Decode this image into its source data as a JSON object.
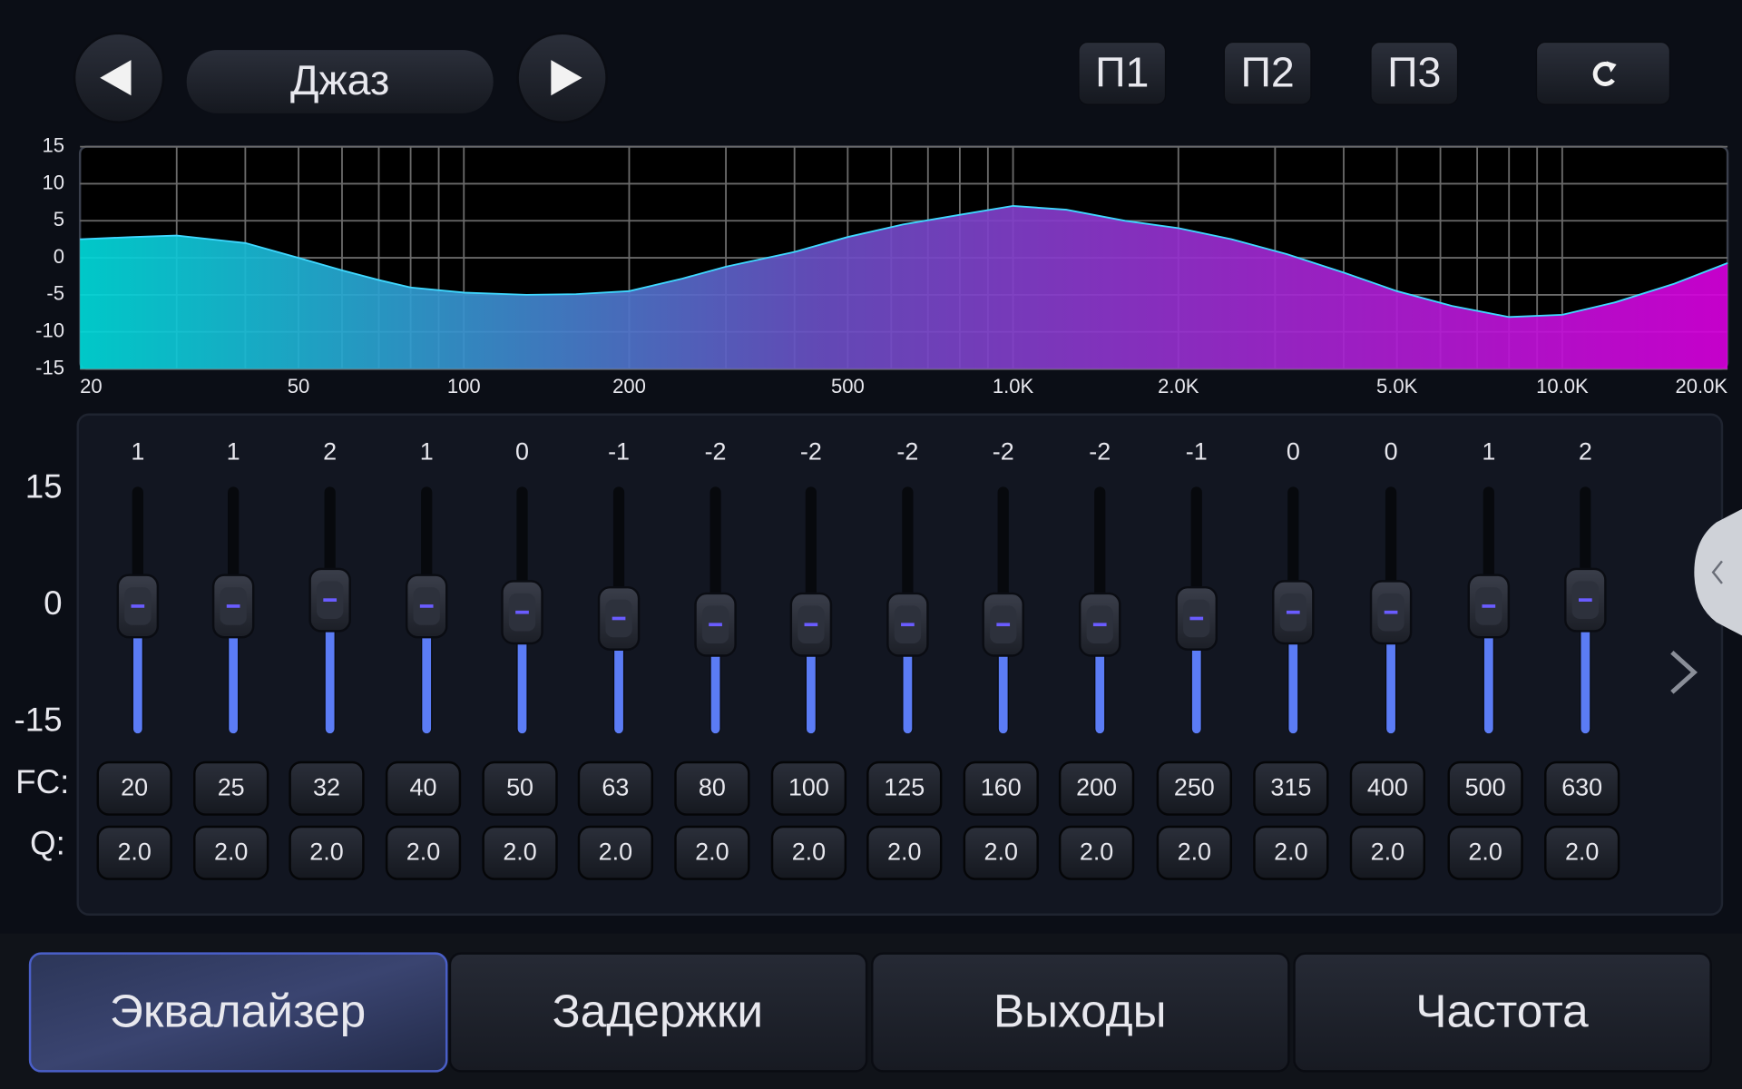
{
  "header": {
    "preset": "Джаз",
    "presets": [
      "П1",
      "П2",
      "П3"
    ]
  },
  "response": {
    "ylim": [
      -15,
      15
    ],
    "yticks": [
      15,
      10,
      5,
      0,
      -5,
      -10,
      -15
    ],
    "xlim": [
      20,
      20000
    ],
    "xticks": [
      20,
      50,
      100,
      200,
      500,
      {
        "value": 1000,
        "label": "1.0K"
      },
      {
        "value": 2000,
        "label": "2.0K"
      },
      {
        "value": 5000,
        "label": "5.0K"
      },
      {
        "value": 10000,
        "label": "10.0K"
      },
      {
        "value": 20000,
        "label": "20.0K"
      }
    ],
    "xgrid": [
      30,
      40,
      50,
      60,
      70,
      80,
      90,
      100,
      200,
      300,
      400,
      500,
      600,
      700,
      800,
      900,
      1000,
      2000,
      3000,
      4000,
      5000,
      6000,
      7000,
      8000,
      9000,
      10000
    ],
    "x": [
      20,
      25,
      30,
      40,
      50,
      60,
      70,
      80,
      100,
      130,
      160,
      200,
      250,
      300,
      400,
      500,
      630,
      800,
      1000,
      1250,
      1600,
      2000,
      2500,
      3150,
      4000,
      5000,
      6300,
      8000,
      10000,
      12500,
      16000,
      20000
    ],
    "values": [
      2.5,
      2.8,
      3,
      2,
      0,
      -1.7,
      -3,
      -4,
      -4.7,
      -5,
      -4.9,
      -4.5,
      -2.8,
      -1.2,
      0.8,
      2.8,
      4.5,
      5.8,
      7,
      6.5,
      5,
      4,
      2.5,
      0.5,
      -2,
      -4.5,
      -6.5,
      -8,
      -7.7,
      -6,
      -3.5,
      -0.7
    ]
  },
  "sliders": {
    "range": [
      -15,
      15
    ],
    "scale": [
      15,
      0,
      -15
    ],
    "gains": [
      1,
      1,
      2,
      1,
      0,
      -1,
      -2,
      -2,
      -2,
      -2,
      -2,
      -1,
      0,
      0,
      1,
      2
    ],
    "fc_label": "FC:",
    "fc": [
      20,
      25,
      32,
      40,
      50,
      63,
      80,
      100,
      125,
      160,
      200,
      250,
      315,
      400,
      500,
      630
    ],
    "q_label": "Q:",
    "q": [
      "2.0",
      "2.0",
      "2.0",
      "2.0",
      "2.0",
      "2.0",
      "2.0",
      "2.0",
      "2.0",
      "2.0",
      "2.0",
      "2.0",
      "2.0",
      "2.0",
      "2.0",
      "2.0"
    ]
  },
  "tabs": [
    "Эквалайзер",
    "Задержки",
    "Выходы",
    "Частота"
  ]
}
